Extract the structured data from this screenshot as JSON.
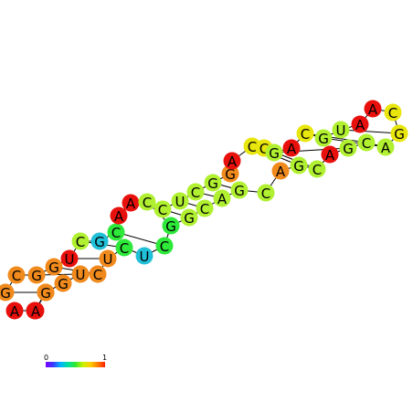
{
  "colors": {
    "red": "#e8100c",
    "orange": "#f08a1c",
    "yellow": "#e8e60c",
    "lime": "#b0f030",
    "green": "#2ee83a",
    "teal": "#22c0d8",
    "backbone": "#000000",
    "pair": "#000000"
  },
  "nucleotides": [
    {
      "base": "A",
      "color": "red"
    },
    {
      "base": "A",
      "color": "red"
    },
    {
      "base": "G",
      "color": "orange"
    },
    {
      "base": "G",
      "color": "orange"
    },
    {
      "base": "C",
      "color": "orange"
    },
    {
      "base": "G",
      "color": "orange"
    },
    {
      "base": "G",
      "color": "orange"
    },
    {
      "base": "U",
      "color": "red"
    },
    {
      "base": "C",
      "color": "lime"
    },
    {
      "base": "G",
      "color": "teal"
    },
    {
      "base": "C",
      "color": "green"
    },
    {
      "base": "A",
      "color": "red"
    },
    {
      "base": "A",
      "color": "red"
    },
    {
      "base": "C",
      "color": "lime"
    },
    {
      "base": "C",
      "color": "lime"
    },
    {
      "base": "U",
      "color": "lime"
    },
    {
      "base": "C",
      "color": "lime"
    },
    {
      "base": "G",
      "color": "lime"
    },
    {
      "base": "G",
      "color": "orange"
    },
    {
      "base": "A",
      "color": "red"
    },
    {
      "base": "C",
      "color": "yellow"
    },
    {
      "base": "C",
      "color": "yellow"
    },
    {
      "base": "G",
      "color": "lime"
    },
    {
      "base": "A",
      "color": "red"
    },
    {
      "base": "C",
      "color": "yellow"
    },
    {
      "base": "G",
      "color": "lime"
    },
    {
      "base": "U",
      "color": "lime"
    },
    {
      "base": "A",
      "color": "red"
    },
    {
      "base": "A",
      "color": "red"
    },
    {
      "base": "C",
      "color": "yellow"
    },
    {
      "base": "G",
      "color": "yellow"
    },
    {
      "base": "A",
      "color": "lime"
    },
    {
      "base": "C",
      "color": "lime"
    },
    {
      "base": "G",
      "color": "lime"
    },
    {
      "base": "A",
      "color": "red"
    },
    {
      "base": "C",
      "color": "lime"
    },
    {
      "base": "G",
      "color": "lime"
    },
    {
      "base": "A",
      "color": "orange"
    },
    {
      "base": "C",
      "color": "lime"
    },
    {
      "base": "G",
      "color": "lime"
    },
    {
      "base": "A",
      "color": "lime"
    },
    {
      "base": "C",
      "color": "lime"
    },
    {
      "base": "G",
      "color": "lime"
    },
    {
      "base": "G",
      "color": "green"
    },
    {
      "base": "C",
      "color": "green"
    },
    {
      "base": "U",
      "color": "teal"
    },
    {
      "base": "C",
      "color": "green"
    },
    {
      "base": "U",
      "color": "orange"
    },
    {
      "base": "C",
      "color": "orange"
    },
    {
      "base": "U",
      "color": "orange"
    },
    {
      "base": "G",
      "color": "orange"
    },
    {
      "base": "G",
      "color": "orange"
    },
    {
      "base": "A",
      "color": "red"
    }
  ],
  "pairs": [
    [
      5,
      49
    ],
    [
      6,
      48
    ],
    [
      7,
      47
    ],
    [
      8,
      46
    ],
    [
      10,
      44
    ],
    [
      13,
      43
    ],
    [
      14,
      42
    ],
    [
      15,
      41
    ],
    [
      16,
      40
    ],
    [
      17,
      39
    ],
    [
      20,
      36
    ],
    [
      21,
      35
    ],
    [
      22,
      33
    ],
    [
      24,
      32
    ],
    [
      25,
      31
    ],
    [
      26,
      30
    ]
  ],
  "scale": {
    "min_label": "0",
    "max_label": "1",
    "gradient": [
      "#7b00ff",
      "#3a3aff",
      "#00b4ff",
      "#00e0a0",
      "#30e830",
      "#c8f000",
      "#ffd000",
      "#ff8000",
      "#ff2000"
    ]
  }
}
